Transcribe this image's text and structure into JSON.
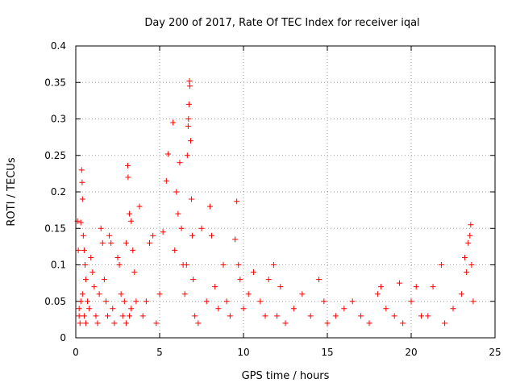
{
  "chart_data": {
    "type": "scatter",
    "title": "Day 200 of 2017, Rate Of TEC Index for receiver iqal",
    "xlabel": "GPS time / hours",
    "ylabel": "ROTI / TECUs",
    "xlim": [
      0,
      25
    ],
    "ylim": [
      0,
      0.4
    ],
    "xticks": [
      "0",
      "5",
      "10",
      "15",
      "20",
      "25"
    ],
    "xtick_values": [
      0,
      5,
      10,
      15,
      20,
      25
    ],
    "yticks": [
      "0",
      "0.05",
      "0.1",
      "0.15",
      "0.2",
      "0.25",
      "0.3",
      "0.35",
      "0.4"
    ],
    "ytick_values": [
      0,
      0.05,
      0.1,
      0.15,
      0.2,
      0.25,
      0.3,
      0.35,
      0.4
    ],
    "grid": true,
    "marker": "+",
    "color": "#ff0000",
    "series": [
      {
        "name": "ROTI",
        "points": [
          [
            0.1,
            0.16
          ],
          [
            0.15,
            0.12
          ],
          [
            0.2,
            0.04
          ],
          [
            0.25,
            0.02
          ],
          [
            0.3,
            0.158
          ],
          [
            0.35,
            0.23
          ],
          [
            0.38,
            0.213
          ],
          [
            0.4,
            0.19
          ],
          [
            0.45,
            0.14
          ],
          [
            0.5,
            0.12
          ],
          [
            0.55,
            0.1
          ],
          [
            0.6,
            0.08
          ],
          [
            0.4,
            0.06
          ],
          [
            0.3,
            0.05
          ],
          [
            0.2,
            0.03
          ],
          [
            0.5,
            0.03
          ],
          [
            0.6,
            0.02
          ],
          [
            0.7,
            0.05
          ],
          [
            0.8,
            0.04
          ],
          [
            0.9,
            0.11
          ],
          [
            1.0,
            0.09
          ],
          [
            1.1,
            0.07
          ],
          [
            1.2,
            0.03
          ],
          [
            1.3,
            0.02
          ],
          [
            1.4,
            0.06
          ],
          [
            1.5,
            0.15
          ],
          [
            1.6,
            0.13
          ],
          [
            1.7,
            0.08
          ],
          [
            1.8,
            0.05
          ],
          [
            1.9,
            0.03
          ],
          [
            2.0,
            0.14
          ],
          [
            2.1,
            0.13
          ],
          [
            2.2,
            0.04
          ],
          [
            2.3,
            0.02
          ],
          [
            2.5,
            0.11
          ],
          [
            2.6,
            0.1
          ],
          [
            2.7,
            0.06
          ],
          [
            2.8,
            0.03
          ],
          [
            2.9,
            0.05
          ],
          [
            3.0,
            0.13
          ],
          [
            3.1,
            0.236
          ],
          [
            3.12,
            0.22
          ],
          [
            3.2,
            0.17
          ],
          [
            3.3,
            0.16
          ],
          [
            3.4,
            0.12
          ],
          [
            3.5,
            0.09
          ],
          [
            3.6,
            0.05
          ],
          [
            3.3,
            0.04
          ],
          [
            3.2,
            0.03
          ],
          [
            3.0,
            0.02
          ],
          [
            3.8,
            0.18
          ],
          [
            4.0,
            0.03
          ],
          [
            4.2,
            0.05
          ],
          [
            4.4,
            0.13
          ],
          [
            4.6,
            0.14
          ],
          [
            4.8,
            0.02
          ],
          [
            5.0,
            0.06
          ],
          [
            5.2,
            0.145
          ],
          [
            5.4,
            0.215
          ],
          [
            5.5,
            0.252
          ],
          [
            5.8,
            0.295
          ],
          [
            5.9,
            0.12
          ],
          [
            6.0,
            0.2
          ],
          [
            6.1,
            0.17
          ],
          [
            6.2,
            0.24
          ],
          [
            6.3,
            0.15
          ],
          [
            6.4,
            0.1
          ],
          [
            6.5,
            0.06
          ],
          [
            6.6,
            0.1
          ],
          [
            6.65,
            0.25
          ],
          [
            6.7,
            0.29
          ],
          [
            6.72,
            0.3
          ],
          [
            6.75,
            0.32
          ],
          [
            6.78,
            0.352
          ],
          [
            6.8,
            0.345
          ],
          [
            6.85,
            0.27
          ],
          [
            6.9,
            0.19
          ],
          [
            6.95,
            0.14
          ],
          [
            7.0,
            0.08
          ],
          [
            7.1,
            0.03
          ],
          [
            7.3,
            0.02
          ],
          [
            7.5,
            0.15
          ],
          [
            7.8,
            0.05
          ],
          [
            8.0,
            0.18
          ],
          [
            8.1,
            0.14
          ],
          [
            8.3,
            0.07
          ],
          [
            8.5,
            0.04
          ],
          [
            8.8,
            0.1
          ],
          [
            9.0,
            0.05
          ],
          [
            9.2,
            0.03
          ],
          [
            9.5,
            0.135
          ],
          [
            9.6,
            0.187
          ],
          [
            9.7,
            0.1
          ],
          [
            9.8,
            0.08
          ],
          [
            10.0,
            0.04
          ],
          [
            10.3,
            0.06
          ],
          [
            10.6,
            0.09
          ],
          [
            11.0,
            0.05
          ],
          [
            11.3,
            0.03
          ],
          [
            11.5,
            0.08
          ],
          [
            11.8,
            0.1
          ],
          [
            12.0,
            0.03
          ],
          [
            12.2,
            0.07
          ],
          [
            12.5,
            0.02
          ],
          [
            13.0,
            0.04
          ],
          [
            13.5,
            0.06
          ],
          [
            14.0,
            0.03
          ],
          [
            14.5,
            0.08
          ],
          [
            14.8,
            0.05
          ],
          [
            15.0,
            0.02
          ],
          [
            15.5,
            0.03
          ],
          [
            16.0,
            0.04
          ],
          [
            16.5,
            0.05
          ],
          [
            17.0,
            0.03
          ],
          [
            17.5,
            0.02
          ],
          [
            18.0,
            0.06
          ],
          [
            18.2,
            0.07
          ],
          [
            18.5,
            0.04
          ],
          [
            19.0,
            0.03
          ],
          [
            19.3,
            0.075
          ],
          [
            19.5,
            0.02
          ],
          [
            20.0,
            0.05
          ],
          [
            20.3,
            0.07
          ],
          [
            20.6,
            0.03
          ],
          [
            21.0,
            0.03
          ],
          [
            21.3,
            0.07
          ],
          [
            21.8,
            0.1
          ],
          [
            22.0,
            0.02
          ],
          [
            22.5,
            0.04
          ],
          [
            23.0,
            0.06
          ],
          [
            23.2,
            0.11
          ],
          [
            23.3,
            0.09
          ],
          [
            23.4,
            0.13
          ],
          [
            23.5,
            0.14
          ],
          [
            23.55,
            0.155
          ],
          [
            23.6,
            0.1
          ],
          [
            23.7,
            0.05
          ]
        ]
      }
    ]
  }
}
